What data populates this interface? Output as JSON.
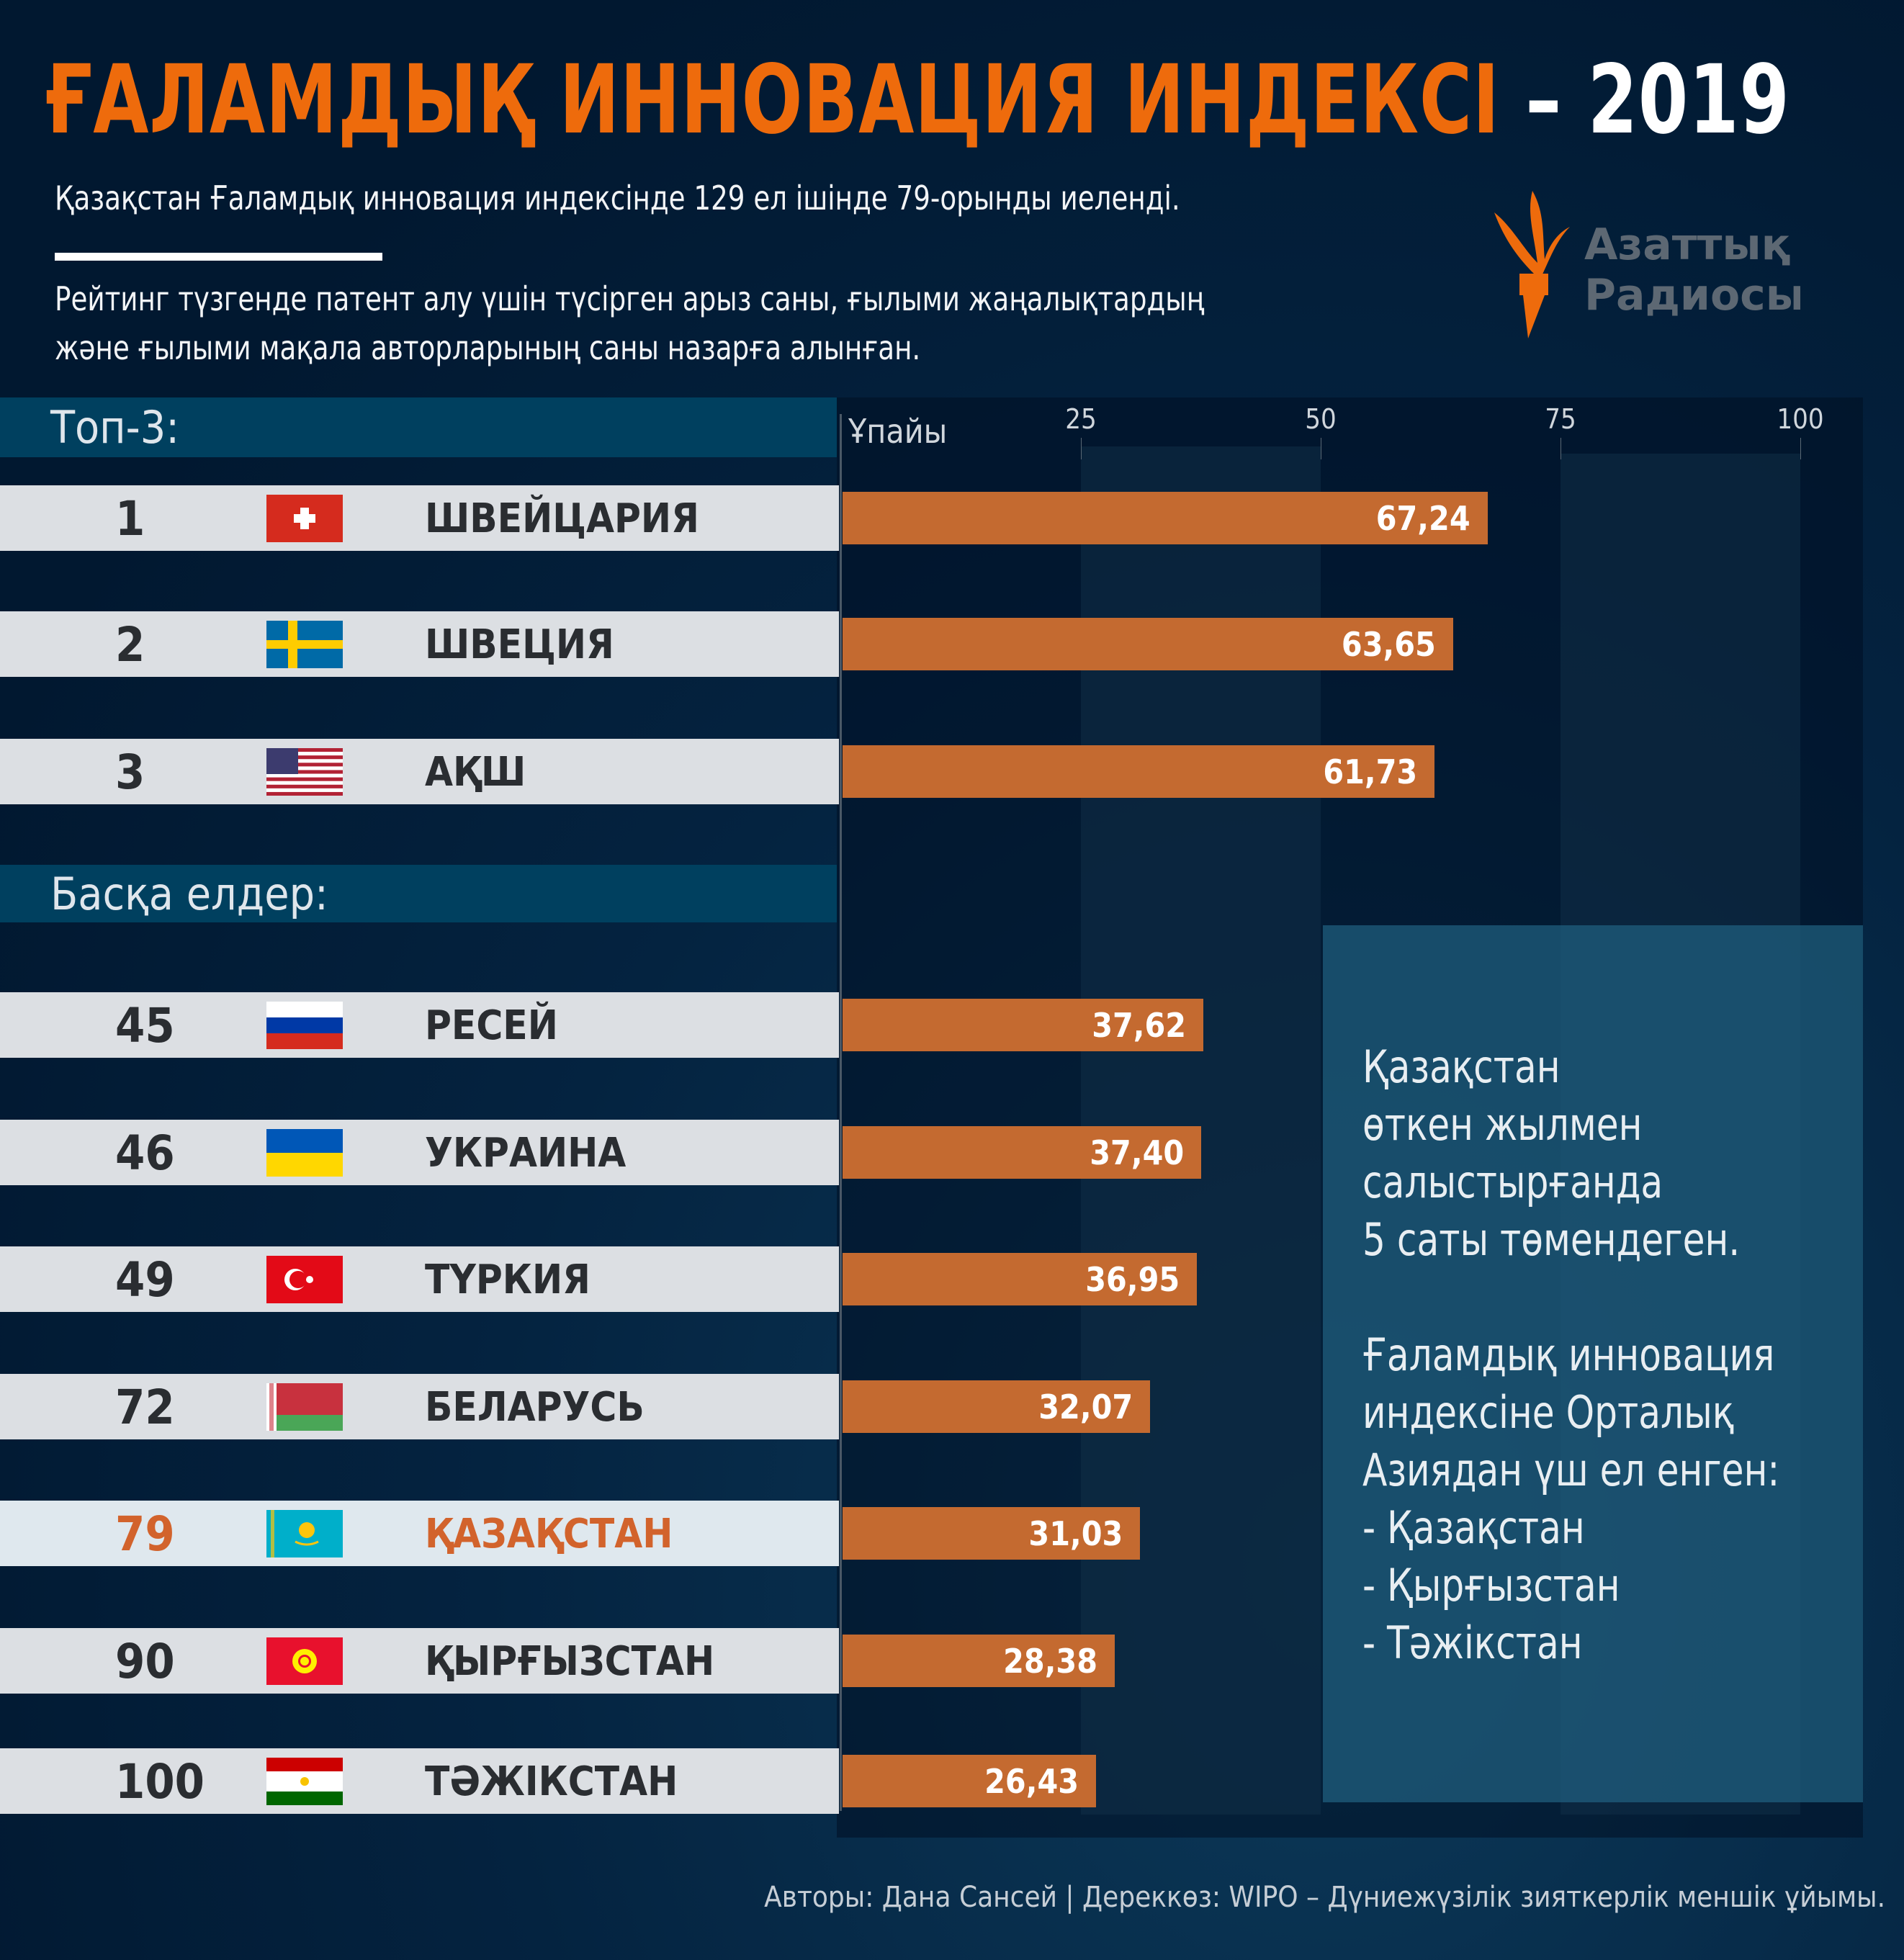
{
  "header": {
    "title_orange": "ҒАЛАМДЫҚ ИННОВАЦИЯ ИНДЕКСІ",
    "title_white": " – 2019",
    "subtitle": "Қазақстан Ғаламдық инновация индексінде 129 ел ішінде 79-орынды иеленді.",
    "description_line1": "Рейтинг түзгенде патент алу үшін түсірген арыз саны, ғылыми жаңалықтардың",
    "description_line2": "және ғылыми мақала авторларының саны назарға алынған."
  },
  "logo": {
    "line1": "Азаттық",
    "line2": "Радиосы",
    "accent": "#ee6b0c"
  },
  "sections": {
    "top": "Топ-3:",
    "others": "Басқа елдер:"
  },
  "chart_data": {
    "type": "bar",
    "orientation": "horizontal",
    "xlabel": "Ұпайы",
    "xlim": [
      0,
      100
    ],
    "ticks": [
      25,
      50,
      75,
      100
    ],
    "bar_color": "#c46a30",
    "highlight_color": "#d2632c",
    "rows": [
      {
        "rank": "1",
        "country": "ШВЕЙЦАРИЯ",
        "value": 67.24,
        "label": "67,24",
        "flag": "switzerland-flag",
        "group": "top"
      },
      {
        "rank": "2",
        "country": "ШВЕЦИЯ",
        "value": 63.65,
        "label": "63,65",
        "flag": "sweden-flag",
        "group": "top"
      },
      {
        "rank": "3",
        "country": "АҚШ",
        "value": 61.73,
        "label": "61,73",
        "flag": "usa-flag",
        "group": "top"
      },
      {
        "rank": "45",
        "country": "РЕСЕЙ",
        "value": 37.62,
        "label": "37,62",
        "flag": "russia-flag",
        "group": "others"
      },
      {
        "rank": "46",
        "country": "УКРАИНА",
        "value": 37.4,
        "label": "37,40",
        "flag": "ukraine-flag",
        "group": "others"
      },
      {
        "rank": "49",
        "country": "ТҮРКИЯ",
        "value": 36.95,
        "label": "36,95",
        "flag": "turkey-flag",
        "group": "others"
      },
      {
        "rank": "72",
        "country": "БЕЛАРУСЬ",
        "value": 32.07,
        "label": "32,07",
        "flag": "belarus-flag",
        "group": "others"
      },
      {
        "rank": "79",
        "country": "ҚАЗАҚСТАН",
        "value": 31.03,
        "label": "31,03",
        "flag": "kazakhstan-flag",
        "group": "others",
        "highlight": true
      },
      {
        "rank": "90",
        "country": "ҚЫРҒЫЗСТАН",
        "value": 28.38,
        "label": "28,38",
        "flag": "kyrgyzstan-flag",
        "group": "others"
      },
      {
        "rank": "100",
        "country": "ТӘЖІКСТАН",
        "value": 26.43,
        "label": "26,43",
        "flag": "tajikistan-flag",
        "group": "others"
      }
    ]
  },
  "info": {
    "lines": [
      "Қазақстан",
      "өткен жылмен",
      "салыстырғанда",
      "5 саты төмендеген.",
      "",
      "Ғаламдық инновация",
      "индексіне Орталық",
      "Азиядан үш ел енген:",
      "- Қазақстан",
      "- Қырғызстан",
      "- Тәжікстан"
    ]
  },
  "footer": "Авторы: Дана Сансей | Дереккөз: WIPO – Дүниежүзілік зияткерлік меншік ұйымы."
}
